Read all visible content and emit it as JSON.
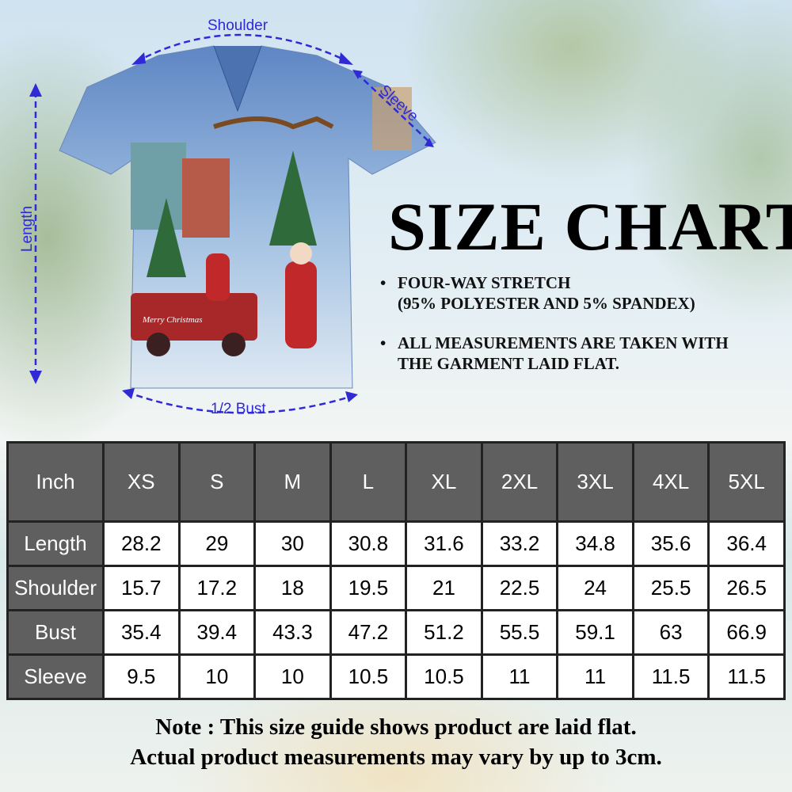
{
  "measurement_labels": {
    "shoulder": "Shoulder",
    "sleeve": "Sleeve",
    "length": "Length",
    "bust": "1/2 Bust"
  },
  "shirt_print_text": "Merry Christmas",
  "title": "SIZE CHART",
  "bullets": [
    {
      "line1": "FOUR-WAY STRETCH",
      "line2": "(95% POLYESTER AND 5% SPANDEX)"
    },
    {
      "line1": "ALL MEASUREMENTS ARE TAKEN WITH",
      "line2": "THE GARMENT LAID FLAT."
    }
  ],
  "table": {
    "unit_header": "Inch",
    "sizes": [
      "XS",
      "S",
      "M",
      "L",
      "XL",
      "2XL",
      "3XL",
      "4XL",
      "5XL"
    ],
    "rows": [
      {
        "label": "Length",
        "values": [
          "28.2",
          "29",
          "30",
          "30.8",
          "31.6",
          "33.2",
          "34.8",
          "35.6",
          "36.4"
        ]
      },
      {
        "label": "Shoulder",
        "values": [
          "15.7",
          "17.2",
          "18",
          "19.5",
          "21",
          "22.5",
          "24",
          "25.5",
          "26.5"
        ]
      },
      {
        "label": "Bust",
        "values": [
          "35.4",
          "39.4",
          "43.3",
          "47.2",
          "51.2",
          "55.5",
          "59.1",
          "63",
          "66.9"
        ]
      },
      {
        "label": "Sleeve",
        "values": [
          "9.5",
          "10",
          "10",
          "10.5",
          "10.5",
          "11",
          "11",
          "11.5",
          "11.5"
        ]
      }
    ]
  },
  "note": {
    "line1": "Note : This size guide shows product are laid flat.",
    "line2": "Actual product measurements may vary by up to 3cm."
  },
  "colors": {
    "arrow": "#2f2ad6",
    "table_header": "#5f5f5f",
    "shirt": "#7fa6d6"
  }
}
